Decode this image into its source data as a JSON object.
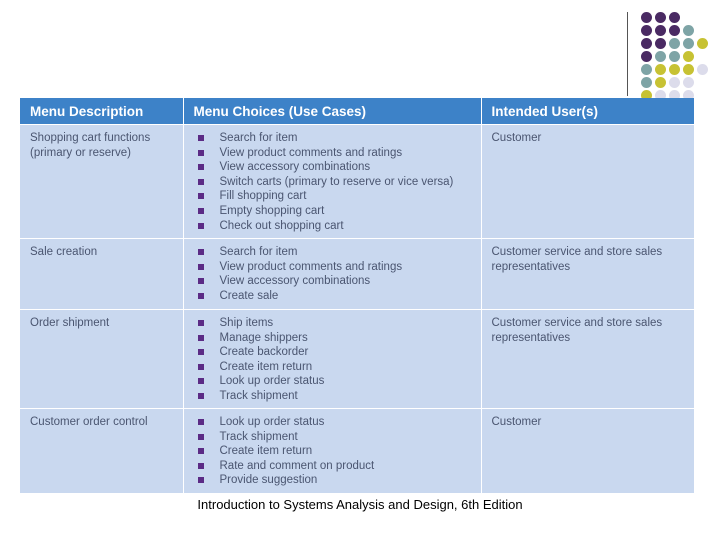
{
  "table": {
    "headers": [
      "Menu Description",
      "Menu Choices (Use Cases)",
      "Intended User(s)"
    ],
    "rows": [
      {
        "description": "Shopping cart functions (primary or reserve)",
        "choices": [
          "Search for item",
          "View product comments and ratings",
          "View accessory combinations",
          "Switch carts (primary to reserve or vice versa)",
          "Fill shopping cart",
          "Empty shopping cart",
          "Check out shopping cart"
        ],
        "users": "Customer"
      },
      {
        "description": "Sale creation",
        "choices": [
          "Search for item",
          "View product comments and ratings",
          "View accessory combinations",
          "Create sale"
        ],
        "users": "Customer service and store sales representatives"
      },
      {
        "description": "Order shipment",
        "choices": [
          "Ship items",
          "Manage shippers",
          "Create backorder",
          "Create item return",
          "Look up order status",
          "Track shipment"
        ],
        "users": "Customer service and store sales representatives"
      },
      {
        "description": "Customer order control",
        "choices": [
          "Look up order status",
          "Track shipment",
          "Create item return",
          "Rate and comment on product",
          "Provide suggestion"
        ],
        "users": "Customer"
      }
    ]
  },
  "footer": {
    "caption": "Introduction to Systems Analysis and Design, 6th Edition"
  },
  "colors": {
    "header_blue": "#3d82c8",
    "table_bg": "#c9d8ef",
    "bullet": "#5b2b85"
  }
}
